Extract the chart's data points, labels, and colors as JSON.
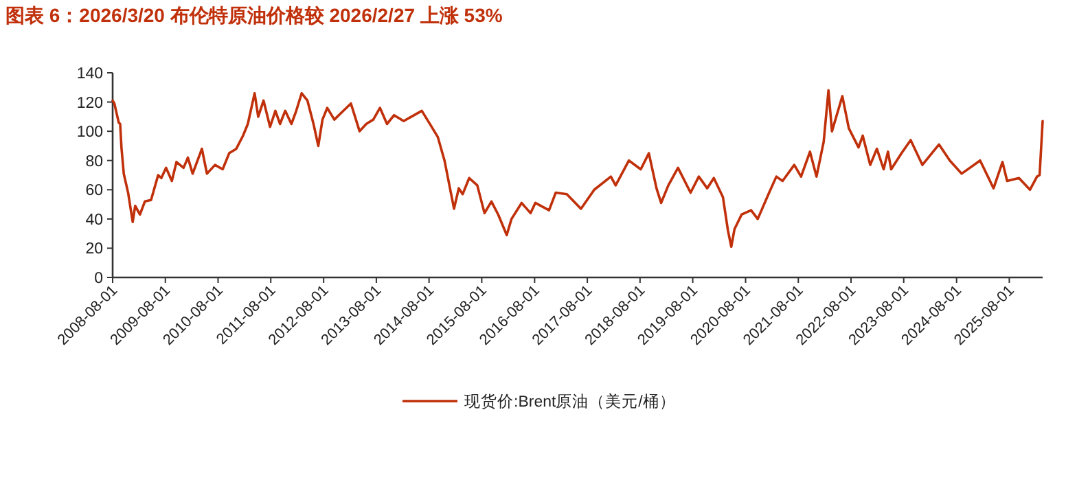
{
  "chart_data": {
    "type": "line",
    "title": "图表 6：2026/3/20 布伦特原油价格较 2026/2/27 上涨 53%",
    "x": [
      "2008-08-01",
      "2008-08-13",
      "2008-09-12",
      "2008-09-22",
      "2008-10-01",
      "2008-10-17",
      "2008-11-16",
      "2008-12-18",
      "2009-01-04",
      "2009-02-06",
      "2009-03-12",
      "2009-04-24",
      "2009-06-12",
      "2009-07-04",
      "2009-08-06",
      "2009-09-15",
      "2009-10-17",
      "2009-12-05",
      "2010-01-04",
      "2010-02-06",
      "2010-04-11",
      "2010-05-16",
      "2010-07-11",
      "2010-09-02",
      "2010-10-17",
      "2010-12-05",
      "2011-01-21",
      "2011-02-23",
      "2011-04-11",
      "2011-05-06",
      "2011-06-12",
      "2011-07-27",
      "2011-09-02",
      "2011-10-04",
      "2011-11-09",
      "2011-12-22",
      "2012-01-21",
      "2012-03-02",
      "2012-04-11",
      "2012-05-23",
      "2012-06-25",
      "2012-07-24",
      "2012-08-26",
      "2012-10-14",
      "2012-12-05",
      "2013-02-06",
      "2013-04-07",
      "2013-05-23",
      "2013-07-11",
      "2013-08-26",
      "2013-10-14",
      "2013-12-02",
      "2014-02-06",
      "2014-04-01",
      "2014-06-12",
      "2014-08-13",
      "2014-10-01",
      "2014-11-16",
      "2015-01-21",
      "2015-02-23",
      "2015-03-22",
      "2015-05-06",
      "2015-07-01",
      "2015-08-20",
      "2015-10-07",
      "2015-11-23",
      "2016-01-21",
      "2016-02-23",
      "2016-05-03",
      "2016-07-04",
      "2016-08-06",
      "2016-11-09",
      "2016-12-25",
      "2017-03-12",
      "2017-06-18",
      "2017-09-18",
      "2018-01-11",
      "2018-02-13",
      "2018-05-16",
      "2018-08-06",
      "2018-10-01",
      "2018-11-23",
      "2018-12-25",
      "2019-02-13",
      "2019-04-21",
      "2019-07-17",
      "2019-09-12",
      "2019-11-09",
      "2019-12-25",
      "2020-02-26",
      "2020-04-01",
      "2020-04-24",
      "2020-05-16",
      "2020-07-04",
      "2020-09-08",
      "2020-10-24",
      "2021-01-11",
      "2021-03-02",
      "2021-04-14",
      "2021-07-04",
      "2021-08-20",
      "2021-10-21",
      "2021-12-05",
      "2022-01-24",
      "2022-02-26",
      "2022-03-22",
      "2022-06-02",
      "2022-07-17",
      "2022-09-22",
      "2022-10-21",
      "2022-12-12",
      "2023-01-27",
      "2023-03-15",
      "2023-04-14",
      "2023-05-06",
      "2023-07-17",
      "2023-09-18",
      "2023-12-08",
      "2024-04-01",
      "2024-06-15",
      "2024-09-05",
      "2025-01-11",
      "2025-04-14",
      "2025-06-15",
      "2025-07-17",
      "2025-10-07",
      "2025-12-22",
      "2026-02-09",
      "2026-02-27",
      "2026-03-20"
    ],
    "series": [
      {
        "name": "现货价:Brent原油（美元/桶）",
        "color": "#c0300a",
        "values": [
          121,
          119,
          106,
          105,
          89,
          71,
          58,
          38,
          49,
          43,
          52,
          53,
          70,
          68,
          75,
          66,
          79,
          75,
          82,
          71,
          88,
          71,
          77,
          74,
          85,
          88,
          97,
          105,
          126,
          110,
          121,
          103,
          114,
          105,
          114,
          105,
          113,
          126,
          121,
          105,
          90,
          108,
          116,
          108,
          113,
          119,
          100,
          105,
          108,
          116,
          105,
          111,
          107,
          110,
          114,
          104,
          96,
          80,
          47,
          61,
          57,
          68,
          63,
          44,
          52,
          43,
          29,
          40,
          51,
          44,
          51,
          46,
          58,
          57,
          47,
          60,
          69,
          63,
          80,
          74,
          85,
          61,
          51,
          63,
          75,
          58,
          69,
          61,
          68,
          55,
          32,
          21,
          33,
          43,
          46,
          40,
          58,
          69,
          66,
          77,
          69,
          86,
          69,
          93,
          128,
          100,
          124,
          102,
          89,
          97,
          77,
          88,
          74,
          86,
          74,
          85,
          94,
          77,
          91,
          80,
          71,
          80,
          61,
          79,
          66,
          68,
          60,
          69,
          70,
          107
        ]
      }
    ],
    "xlim": [
      "2008-08-01",
      "2026-03-20"
    ],
    "xticks": [
      "2008-08-01",
      "2009-08-01",
      "2010-08-01",
      "2011-08-01",
      "2012-08-01",
      "2013-08-01",
      "2014-08-01",
      "2015-08-01",
      "2016-08-01",
      "2017-08-01",
      "2018-08-01",
      "2019-08-01",
      "2020-08-01",
      "2021-08-01",
      "2022-08-01",
      "2023-08-01",
      "2024-08-01",
      "2025-08-01"
    ],
    "ylim": [
      0,
      140
    ],
    "yticks": [
      0,
      20,
      40,
      60,
      80,
      100,
      120,
      140
    ],
    "legend": "bottom"
  }
}
